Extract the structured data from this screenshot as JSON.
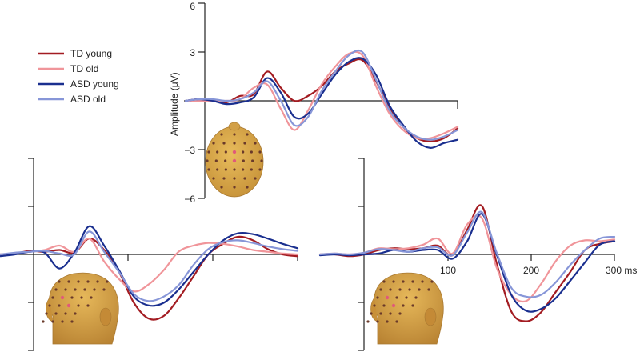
{
  "chart_data": [
    {
      "type": "line",
      "panel": "top",
      "ylabel": "Amplitude (μV)",
      "ylim": [
        -6,
        6
      ],
      "yticks": [
        6,
        3,
        -3,
        -6
      ],
      "ytick_labels": [
        "6",
        "3",
        "−3",
        "−6"
      ],
      "xlim": [
        -100,
        300
      ],
      "series": [
        {
          "name": "TD young",
          "color": "#a31c22",
          "x": [
            -100,
            -80,
            -60,
            -40,
            -20,
            0,
            20,
            40,
            60,
            80,
            100,
            120,
            140,
            160,
            180,
            200,
            220,
            240,
            260,
            280,
            300
          ],
          "y": [
            0.0,
            0.1,
            0.0,
            -0.1,
            0.3,
            0.4,
            1.8,
            0.8,
            0.0,
            0.3,
            0.9,
            1.8,
            2.3,
            2.5,
            1.2,
            -0.4,
            -1.6,
            -2.3,
            -2.5,
            -2.3,
            -1.7
          ]
        },
        {
          "name": "TD old",
          "color": "#f0959a",
          "x": [
            -100,
            -80,
            -60,
            -40,
            -20,
            0,
            20,
            40,
            60,
            80,
            100,
            120,
            140,
            160,
            180,
            200,
            220,
            240,
            260,
            280,
            300
          ],
          "y": [
            0.0,
            0.0,
            0.0,
            0.0,
            0.1,
            0.8,
            1.0,
            -0.5,
            -1.8,
            -0.6,
            1.0,
            2.1,
            2.9,
            2.8,
            0.9,
            -0.8,
            -1.8,
            -2.3,
            -2.3,
            -2.0,
            -1.6
          ]
        },
        {
          "name": "ASD young",
          "color": "#1a2f8f",
          "x": [
            -100,
            -80,
            -60,
            -40,
            -20,
            0,
            20,
            40,
            60,
            80,
            100,
            120,
            140,
            160,
            180,
            200,
            220,
            240,
            260,
            280,
            300
          ],
          "y": [
            0.0,
            0.1,
            0.0,
            -0.2,
            -0.1,
            0.2,
            1.4,
            0.5,
            -1.0,
            -0.8,
            0.4,
            1.6,
            2.4,
            2.6,
            1.6,
            -0.3,
            -1.5,
            -2.5,
            -2.9,
            -2.6,
            -2.4
          ]
        },
        {
          "name": "ASD old",
          "color": "#8796d8",
          "x": [
            -100,
            -80,
            -60,
            -40,
            -20,
            0,
            20,
            40,
            60,
            80,
            100,
            120,
            140,
            160,
            180,
            200,
            220,
            240,
            260,
            280,
            300
          ],
          "y": [
            0.0,
            0.1,
            0.1,
            0.0,
            0.1,
            0.5,
            1.2,
            0.0,
            -1.5,
            -1.0,
            0.6,
            1.8,
            2.8,
            3.0,
            1.3,
            -0.6,
            -1.6,
            -2.2,
            -2.4,
            -2.2,
            -1.8
          ]
        }
      ]
    },
    {
      "type": "line",
      "panel": "bottom-left",
      "xlim": [
        -100,
        300
      ],
      "series": [
        {
          "name": "TD young",
          "color": "#a31c22",
          "x": [
            -100,
            -80,
            -60,
            -40,
            -20,
            0,
            20,
            40,
            60,
            80,
            100,
            120,
            140,
            160,
            180,
            200,
            220,
            240,
            260,
            280,
            300
          ],
          "y": [
            0.0,
            0.1,
            0.4,
            0.3,
            0.5,
            0.2,
            1.8,
            0.5,
            -2.0,
            -5.5,
            -7.3,
            -7.0,
            -5.0,
            -2.5,
            0.0,
            1.2,
            2.0,
            1.6,
            0.6,
            0.0,
            -0.2
          ]
        },
        {
          "name": "TD old",
          "color": "#f0959a",
          "x": [
            -100,
            -80,
            -60,
            -40,
            -20,
            0,
            20,
            40,
            60,
            80,
            100,
            120,
            140,
            160,
            180,
            200,
            220,
            240,
            260,
            280,
            300
          ],
          "y": [
            0.0,
            0.1,
            0.3,
            0.5,
            1.0,
            0.3,
            1.8,
            -0.8,
            -2.8,
            -4.2,
            -3.4,
            -1.8,
            0.3,
            1.0,
            1.3,
            1.2,
            0.9,
            0.5,
            0.3,
            0.1,
            0.0
          ]
        },
        {
          "name": "ASD young",
          "color": "#1a2f8f",
          "x": [
            -100,
            -80,
            -60,
            -40,
            -20,
            0,
            20,
            40,
            60,
            80,
            100,
            120,
            140,
            160,
            180,
            200,
            220,
            240,
            260,
            280,
            300
          ],
          "y": [
            -0.2,
            0.0,
            0.3,
            0.2,
            -1.6,
            0.2,
            3.2,
            1.0,
            -1.8,
            -4.8,
            -5.8,
            -5.5,
            -4.0,
            -2.0,
            0.0,
            1.6,
            2.4,
            2.3,
            1.8,
            1.2,
            0.7
          ]
        },
        {
          "name": "ASD old",
          "color": "#8796d8",
          "x": [
            -100,
            -80,
            -60,
            -40,
            -20,
            0,
            20,
            40,
            60,
            80,
            100,
            120,
            140,
            160,
            180,
            200,
            220,
            240,
            260,
            280,
            300
          ],
          "y": [
            0.0,
            0.2,
            0.3,
            0.4,
            0.1,
            0.0,
            2.6,
            0.3,
            -2.0,
            -4.5,
            -5.3,
            -4.8,
            -3.5,
            -1.2,
            0.6,
            1.4,
            1.6,
            1.3,
            0.9,
            0.6,
            0.4
          ]
        }
      ]
    },
    {
      "type": "line",
      "panel": "bottom-right",
      "xlim": [
        -100,
        300
      ],
      "xticks": [
        100,
        200,
        300
      ],
      "xtick_labels": [
        "100",
        "200",
        "300 ms"
      ],
      "series": [
        {
          "name": "TD young",
          "color": "#a31c22",
          "x": [
            -100,
            -80,
            -60,
            -40,
            -20,
            0,
            20,
            40,
            60,
            80,
            100,
            120,
            140,
            160,
            180,
            200,
            220,
            240,
            260,
            280,
            300
          ],
          "y": [
            0.0,
            0.0,
            -0.2,
            0.0,
            0.5,
            0.7,
            0.6,
            0.7,
            1.0,
            -0.1,
            2.8,
            5.5,
            -1.0,
            -6.5,
            -7.6,
            -6.6,
            -4.3,
            -2.0,
            0.5,
            1.2,
            1.5
          ]
        },
        {
          "name": "TD old",
          "color": "#f0959a",
          "x": [
            -100,
            -80,
            -60,
            -40,
            -20,
            0,
            20,
            40,
            60,
            80,
            100,
            120,
            140,
            160,
            180,
            200,
            220,
            240,
            260,
            280,
            300
          ],
          "y": [
            0.0,
            0.1,
            0.0,
            0.2,
            0.7,
            0.6,
            0.7,
            1.1,
            1.8,
            0.1,
            3.4,
            4.1,
            -1.5,
            -4.6,
            -5.3,
            -3.4,
            -0.8,
            1.0,
            1.6,
            1.5,
            1.7
          ]
        },
        {
          "name": "ASD young",
          "color": "#1a2f8f",
          "x": [
            -100,
            -80,
            -60,
            -40,
            -20,
            0,
            20,
            40,
            60,
            80,
            100,
            120,
            140,
            160,
            180,
            200,
            220,
            240,
            260,
            280,
            300
          ],
          "y": [
            -0.1,
            0.0,
            -0.1,
            0.0,
            0.1,
            0.5,
            0.3,
            0.5,
            0.5,
            -0.5,
            1.5,
            4.6,
            0.0,
            -4.6,
            -6.4,
            -6.2,
            -5.0,
            -3.0,
            -0.9,
            1.1,
            1.5
          ]
        },
        {
          "name": "ASD old",
          "color": "#8796d8",
          "x": [
            -100,
            -80,
            -60,
            -40,
            -20,
            0,
            20,
            40,
            60,
            80,
            100,
            120,
            140,
            160,
            180,
            200,
            220,
            240,
            260,
            280,
            300
          ],
          "y": [
            0.0,
            0.1,
            0.0,
            0.2,
            0.6,
            0.5,
            0.3,
            0.7,
            0.8,
            -0.1,
            2.5,
            4.8,
            0.2,
            -3.8,
            -4.8,
            -4.6,
            -3.2,
            -1.2,
            0.5,
            1.8,
            2.0
          ]
        }
      ]
    }
  ],
  "legend": {
    "placement": "top-left",
    "entries": [
      {
        "label": "TD young",
        "color": "#a31c22"
      },
      {
        "label": "TD old",
        "color": "#f0959a"
      },
      {
        "label": "ASD young",
        "color": "#1a2f8f"
      },
      {
        "label": "ASD old",
        "color": "#8796d8"
      }
    ]
  },
  "colors": {
    "head_fill": "#d9a74a",
    "head_shade": "#b78634",
    "electrode": "#6a3a2a",
    "electrode_highlight": "#e05a7a"
  }
}
